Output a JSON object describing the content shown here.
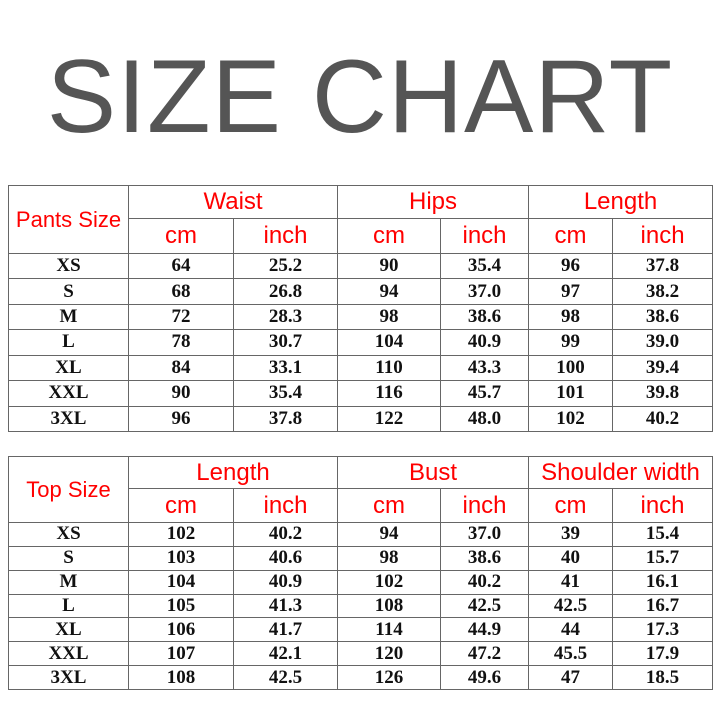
{
  "title": "SIZE CHART",
  "colors": {
    "header": "#ff0000",
    "title": "#555555",
    "text": "#111111"
  },
  "pants": {
    "size_label": "Pants Size",
    "groups": [
      "Waist",
      "Hips",
      "Length"
    ],
    "units": [
      "cm",
      "inch",
      "cm",
      "inch",
      "cm",
      "inch"
    ],
    "rows": [
      [
        "XS",
        "64",
        "25.2",
        "90",
        "35.4",
        "96",
        "37.8"
      ],
      [
        "S",
        "68",
        "26.8",
        "94",
        "37.0",
        "97",
        "38.2"
      ],
      [
        "M",
        "72",
        "28.3",
        "98",
        "38.6",
        "98",
        "38.6"
      ],
      [
        "L",
        "78",
        "30.7",
        "104",
        "40.9",
        "99",
        "39.0"
      ],
      [
        "XL",
        "84",
        "33.1",
        "110",
        "43.3",
        "100",
        "39.4"
      ],
      [
        "XXL",
        "90",
        "35.4",
        "116",
        "45.7",
        "101",
        "39.8"
      ],
      [
        "3XL",
        "96",
        "37.8",
        "122",
        "48.0",
        "102",
        "40.2"
      ]
    ]
  },
  "top": {
    "size_label": "Top Size",
    "groups": [
      "Length",
      "Bust",
      "Shoulder width"
    ],
    "units": [
      "cm",
      "inch",
      "cm",
      "inch",
      "cm",
      "inch"
    ],
    "rows": [
      [
        "XS",
        "102",
        "40.2",
        "94",
        "37.0",
        "39",
        "15.4"
      ],
      [
        "S",
        "103",
        "40.6",
        "98",
        "38.6",
        "40",
        "15.7"
      ],
      [
        "M",
        "104",
        "40.9",
        "102",
        "40.2",
        "41",
        "16.1"
      ],
      [
        "L",
        "105",
        "41.3",
        "108",
        "42.5",
        "42.5",
        "16.7"
      ],
      [
        "XL",
        "106",
        "41.7",
        "114",
        "44.9",
        "44",
        "17.3"
      ],
      [
        "XXL",
        "107",
        "42.1",
        "120",
        "47.2",
        "45.5",
        "17.9"
      ],
      [
        "3XL",
        "108",
        "42.5",
        "126",
        "49.6",
        "47",
        "18.5"
      ]
    ]
  }
}
